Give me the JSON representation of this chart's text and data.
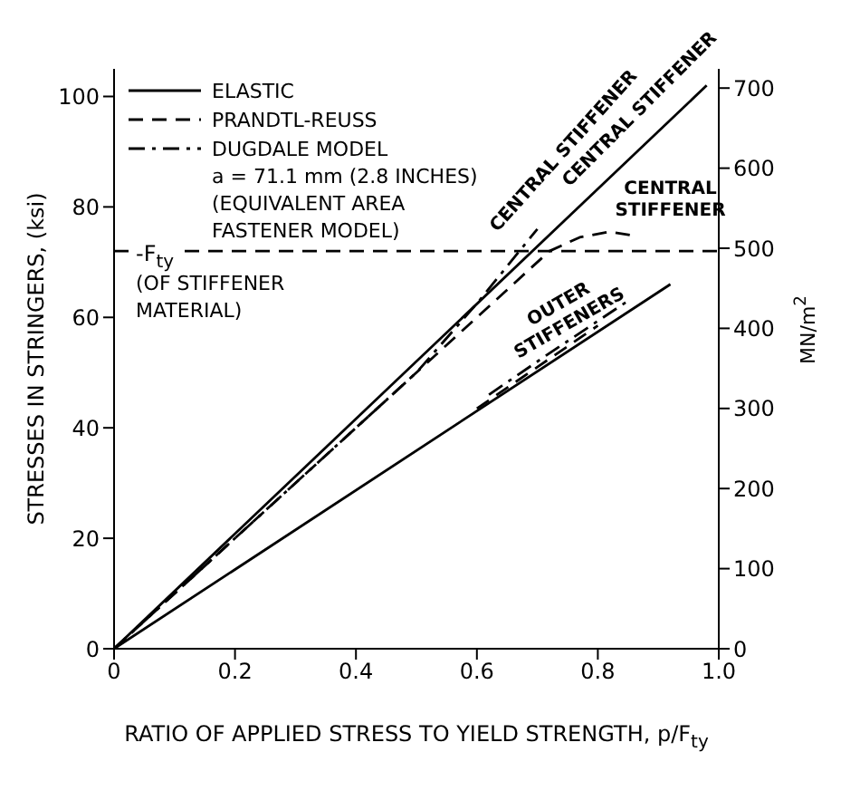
{
  "chart_data": {
    "type": "line",
    "xlabel": "RATIO OF APPLIED STRESS TO YIELD STRENGTH, p/F$_{ty}$",
    "ylabel": "STRESSES IN STRINGERS, (ksi)",
    "y2label": "MN/m$^{2}$",
    "xlim": [
      0,
      1.0
    ],
    "xticks": [
      0,
      0.2,
      0.4,
      0.6,
      0.8,
      {
        "value": 1,
        "label": "1.0"
      }
    ],
    "ylim": [
      0,
      105
    ],
    "yticks": [
      0,
      20,
      40,
      60,
      80,
      100
    ],
    "y2lim": [
      0,
      724
    ],
    "y2ticks": [
      0,
      100,
      200,
      300,
      400,
      500,
      600,
      700
    ],
    "grid": false,
    "legend": "top left",
    "marker": "none",
    "series": [
      {
        "name": "ELASTIC",
        "color": "#000000",
        "line_style": "solid",
        "x": [
          0,
          0.98
        ],
        "values": [
          0,
          102
        ]
      },
      {
        "name": "PRANDTL-REUSS",
        "color": "#000000",
        "line_style": "dashed",
        "x": [
          0,
          0.72,
          0.77,
          0.82,
          0.86
        ],
        "values": [
          0,
          72,
          74.5,
          75.5,
          74.8
        ]
      },
      {
        "name": "DUGDALE MODEL",
        "color": "#000000",
        "line_style": "dashdot",
        "x": [
          0,
          0.5,
          0.6,
          0.7
        ],
        "values": [
          0,
          50,
          62.5,
          76
        ]
      },
      {
        "color": "#000000",
        "line_style": "solid",
        "x": [
          0,
          0.92
        ],
        "values": [
          0,
          66
        ]
      },
      {
        "color": "#000000",
        "line_style": "dashed",
        "x": [
          0.6,
          0.7,
          0.8
        ],
        "values": [
          43.5,
          51,
          58.5
        ]
      },
      {
        "color": "#000000",
        "line_style": "dashdot",
        "x": [
          0.62,
          0.72,
          0.85
        ],
        "values": [
          46,
          53.5,
          63
        ]
      }
    ],
    "ref_lines": [
      {
        "axis": "y",
        "value": 72,
        "label": "-F$_{ty}$",
        "line_style": "dashed",
        "color": "#000000"
      }
    ],
    "annotations": [
      "CENTRAL STIFFENER",
      "CENTRAL STIFFENER",
      "CENTRAL STIFFENER",
      "OUTER STIFFENERS",
      "a = 71.1 mm (2.8 INCHES)",
      "(EQUIVALENT AREA FASTENER MODEL)",
      "(OF STIFFENER MATERIAL)"
    ]
  }
}
